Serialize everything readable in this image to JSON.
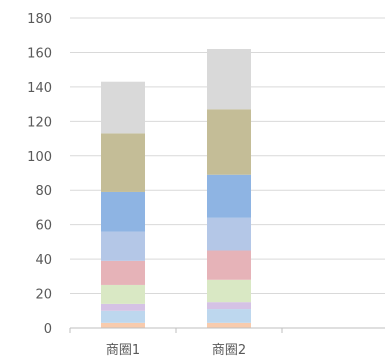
{
  "chart_data": {
    "type": "bar",
    "stacked": true,
    "categories": [
      "商圈1",
      "商圈2"
    ],
    "ylim": [
      0,
      180
    ],
    "yticks": [
      0,
      20,
      40,
      60,
      80,
      100,
      120,
      140,
      160,
      180
    ],
    "grid": true,
    "legend": "none",
    "series": [
      {
        "color": "#f8cbad",
        "values": [
          3,
          3
        ]
      },
      {
        "color": "#bdd7ee",
        "values": [
          7,
          8
        ]
      },
      {
        "color": "#d5c2e5",
        "values": [
          4,
          4
        ]
      },
      {
        "color": "#d9e8c4",
        "values": [
          11,
          13
        ]
      },
      {
        "color": "#e6b3b8",
        "values": [
          14,
          17
        ]
      },
      {
        "color": "#b4c7e7",
        "values": [
          17,
          19
        ]
      },
      {
        "color": "#8eb4e3",
        "values": [
          23,
          25
        ]
      },
      {
        "color": "#c4bd97",
        "values": [
          34,
          38
        ]
      },
      {
        "color": "#d9d9d9",
        "values": [
          30,
          35
        ]
      }
    ]
  }
}
